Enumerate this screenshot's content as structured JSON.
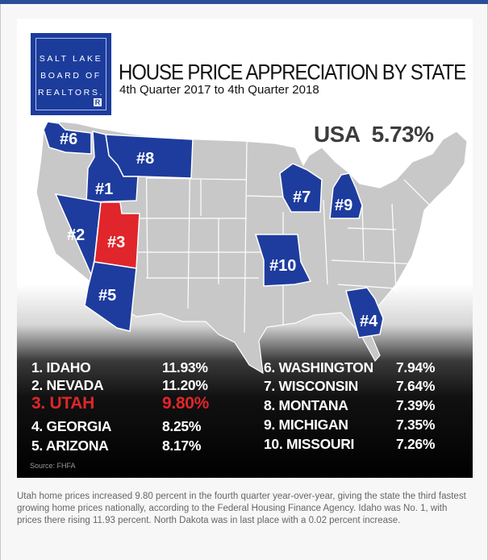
{
  "logo": {
    "lines": [
      "SALT LAKE",
      "BOARD OF",
      "REALTORS."
    ],
    "mark": "R"
  },
  "infographic": {
    "title": "HOUSE PRICE APPRECIATION BY STATE",
    "subtitle": "4th Quarter 2017 to 4th Quarter 2018",
    "usa_label": "USA",
    "usa_value": "5.73%",
    "source": "Source: FHFA"
  },
  "map_labels": {
    "idaho": "#1",
    "nevada": "#2",
    "utah": "#3",
    "georgia": "#4",
    "arizona": "#5",
    "washington": "#6",
    "wisconsin": "#7",
    "montana": "#8",
    "michigan": "#9",
    "missouri": "#10"
  },
  "colors": {
    "highlight_blue": "#1e3c9e",
    "utah_red": "#e0262a",
    "land_gray": "#c8c8c8",
    "border_white": "#ffffff"
  },
  "rankings": [
    {
      "label": "1. IDAHO",
      "value": "11.93%"
    },
    {
      "label": "2. NEVADA",
      "value": "11.20%"
    },
    {
      "label": "3. UTAH",
      "value": "9.80%"
    },
    {
      "label": "4. GEORGIA",
      "value": "8.25%"
    },
    {
      "label": "5. ARIZONA",
      "value": "8.17%"
    },
    {
      "label": "6. WASHINGTON",
      "value": "7.94%"
    },
    {
      "label": "7. WISCONSIN",
      "value": "7.64%"
    },
    {
      "label": "8. MONTANA",
      "value": "7.39%"
    },
    {
      "label": "9. MICHIGAN",
      "value": "7.35%"
    },
    {
      "label": "10. MISSOURI",
      "value": "7.26%"
    }
  ],
  "caption": "Utah home prices increased 9.80 percent in the fourth quarter year-over-year, giving the state the third fastest growing home prices nationally, according to the Federal Housing Finance Agency. Idaho was No. 1, with prices there rising 11.93 percent. North Dakota was in last place with a 0.02 percent increase."
}
